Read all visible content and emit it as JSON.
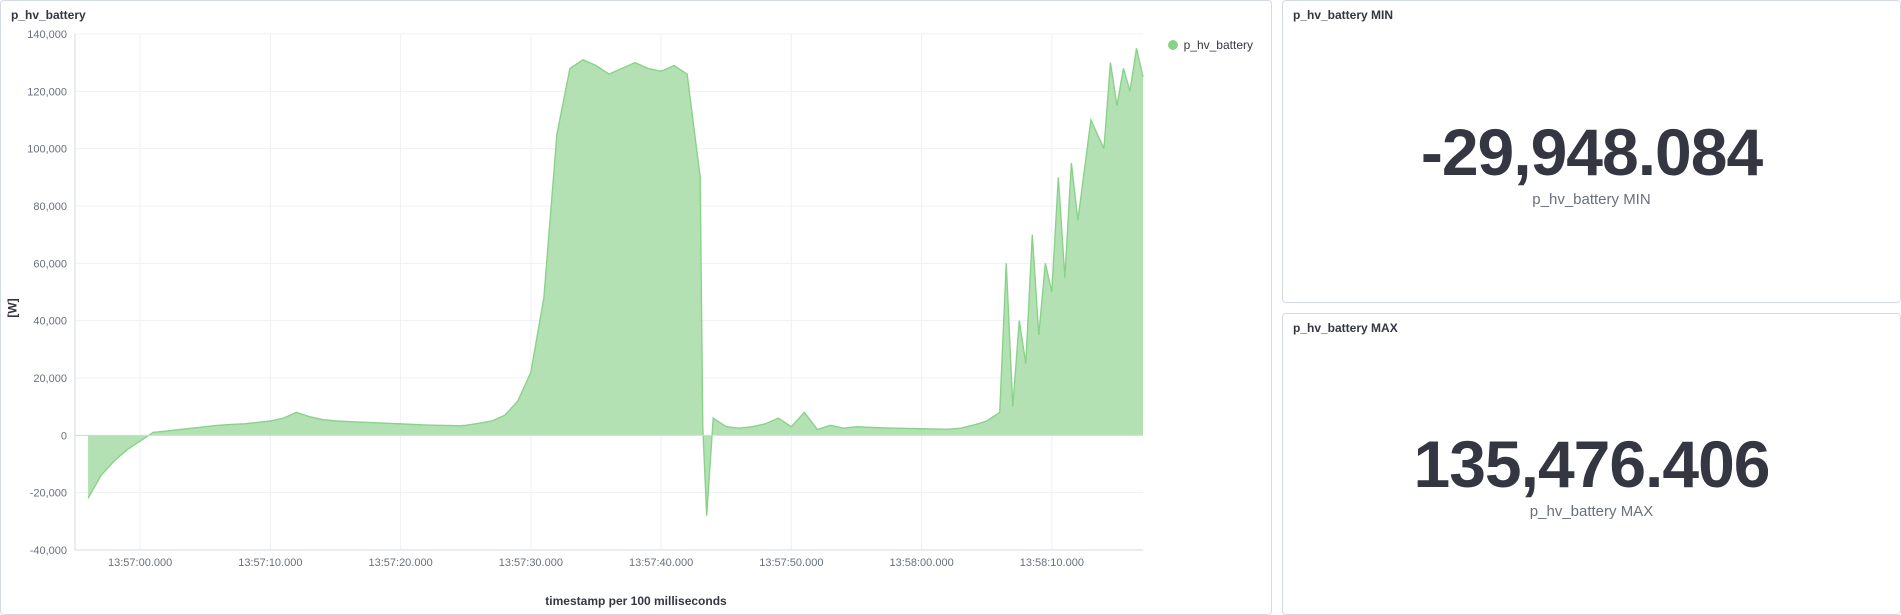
{
  "chart_panel": {
    "title": "p_hv_battery",
    "y_axis_title": "[W]",
    "x_axis_title": "timestamp per 100 milliseconds",
    "legend_label": "p_hv_battery",
    "series_color": "#8ad28a",
    "series_fill": "#a7dca7",
    "background_color": "#ffffff",
    "grid_color": "#eef0f4",
    "axis_line_color": "#d3dae6",
    "tick_text_color": "#69707d",
    "y_min": -40000,
    "y_max": 140000,
    "y_tick_step": 20000,
    "y_ticks": [
      "-40,000",
      "-20,000",
      "0",
      "20,000",
      "40,000",
      "60,000",
      "80,000",
      "100,000",
      "120,000",
      "140,000"
    ],
    "x_ticks": [
      "13:57:00.000",
      "13:57:10.000",
      "13:57:20.000",
      "13:57:30.000",
      "13:57:40.000",
      "13:57:50.000",
      "13:58:00.000",
      "13:58:10.000"
    ],
    "x_domain": [
      -5,
      77
    ],
    "series": {
      "x": [
        -4,
        -3,
        -2,
        -1,
        0,
        1,
        2,
        3,
        4,
        5,
        6,
        7,
        8,
        9,
        10,
        11,
        12,
        13,
        14,
        15,
        16,
        17,
        18,
        19,
        20,
        21,
        22,
        23,
        24,
        24.5,
        25,
        26,
        27,
        28,
        29,
        30,
        31,
        32,
        33,
        34,
        35,
        36,
        37,
        38,
        39,
        40,
        41,
        42,
        43,
        43.2,
        43.5,
        44,
        45,
        46,
        47,
        48,
        49,
        50,
        51,
        52,
        53,
        54,
        55,
        56,
        57,
        58,
        59,
        60,
        61,
        62,
        63,
        64,
        65,
        66,
        66.5,
        67,
        67.5,
        68,
        68.5,
        69,
        69.5,
        70,
        70.5,
        71,
        71.5,
        72,
        73,
        74,
        74.5,
        75,
        75.5,
        76,
        76.5,
        77
      ],
      "y": [
        -22000,
        -14000,
        -9000,
        -5000,
        -2000,
        1000,
        1500,
        2000,
        2500,
        3000,
        3500,
        3800,
        4000,
        4500,
        5000,
        6000,
        8000,
        6500,
        5500,
        5000,
        4800,
        4600,
        4400,
        4200,
        4000,
        3800,
        3600,
        3500,
        3400,
        3300,
        3500,
        4200,
        5000,
        7000,
        12000,
        22000,
        48000,
        105000,
        128000,
        131000,
        129000,
        126000,
        128000,
        130000,
        128000,
        127000,
        129000,
        126000,
        90000,
        3000,
        -28000,
        6000,
        3000,
        2500,
        3000,
        4000,
        6000,
        3000,
        8000,
        2000,
        3500,
        2500,
        3000,
        2800,
        2600,
        2500,
        2400,
        2300,
        2200,
        2100,
        2500,
        3600,
        5000,
        8000,
        60000,
        10000,
        40000,
        25000,
        70000,
        35000,
        60000,
        50000,
        90000,
        55000,
        95000,
        75000,
        110000,
        100000,
        130000,
        115000,
        128000,
        120000,
        135000,
        125000
      ]
    }
  },
  "min_panel": {
    "title": "p_hv_battery MIN",
    "value": "-29,948.084",
    "label": "p_hv_battery MIN"
  },
  "max_panel": {
    "title": "p_hv_battery MAX",
    "value": "135,476.406",
    "label": "p_hv_battery MAX"
  }
}
